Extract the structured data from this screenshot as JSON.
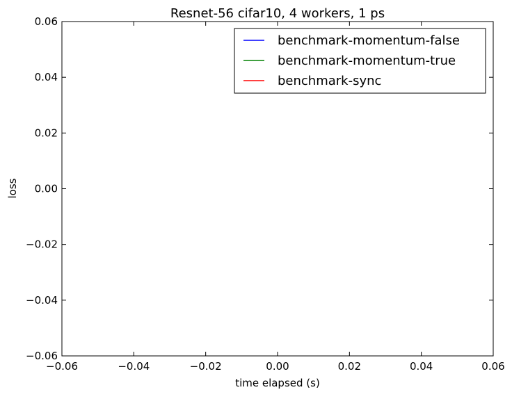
{
  "chart_data": {
    "type": "line",
    "title": "Resnet-56 cifar10, 4 workers, 1 ps",
    "xlabel": "time elapsed (s)",
    "ylabel": "loss",
    "xlim": [
      -0.06,
      0.06
    ],
    "ylim": [
      -0.06,
      0.06
    ],
    "xticks": [
      -0.06,
      -0.04,
      -0.02,
      0.0,
      0.02,
      0.04,
      0.06
    ],
    "yticks": [
      -0.06,
      -0.04,
      -0.02,
      0.0,
      0.02,
      0.04,
      0.06
    ],
    "xtick_labels": [
      "−0.06",
      "−0.04",
      "−0.02",
      "0.00",
      "0.02",
      "0.04",
      "0.06"
    ],
    "ytick_labels": [
      "−0.06",
      "−0.04",
      "−0.02",
      "0.00",
      "0.02",
      "0.04",
      "0.06"
    ],
    "grid": false,
    "legend_position": "top-right",
    "series": [
      {
        "name": "benchmark-momentum-false",
        "color": "#0000ff",
        "x": [],
        "y": []
      },
      {
        "name": "benchmark-momentum-true",
        "color": "#008000",
        "x": [],
        "y": []
      },
      {
        "name": "benchmark-sync",
        "color": "#ff0000",
        "x": [],
        "y": []
      }
    ]
  }
}
